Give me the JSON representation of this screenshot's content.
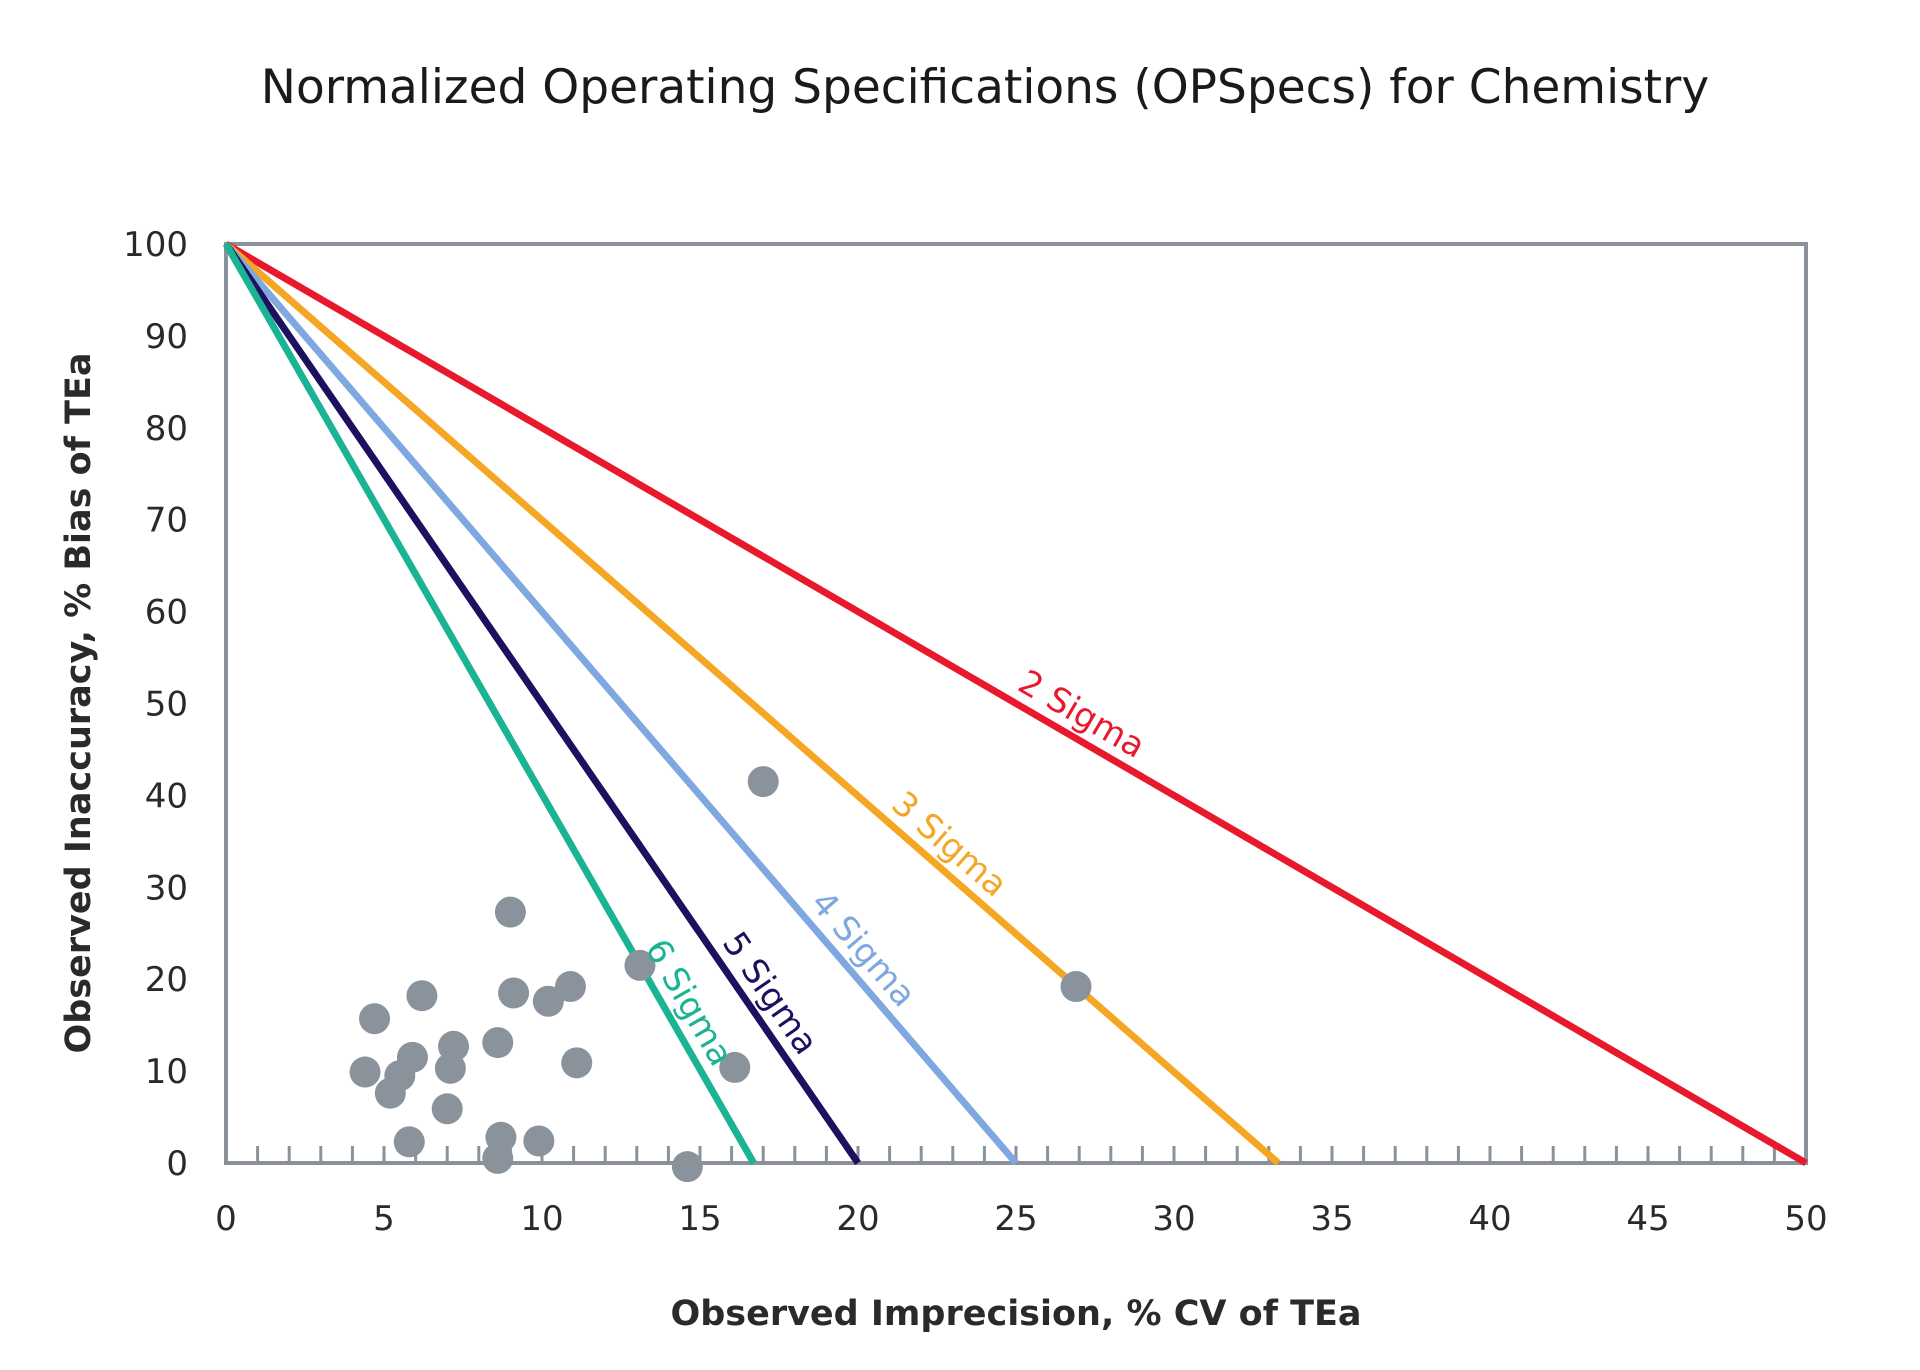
{
  "chart_data": {
    "type": "scatter",
    "title": "Normalized Operating Specifications (OPSpecs) for Chemistry",
    "xlabel": "Observed Imprecision, % CV of TEa",
    "ylabel": "Observed Inaccuracy, % Bias of TEa",
    "xlim": [
      0,
      50
    ],
    "ylim": [
      0,
      100
    ],
    "xticks": [
      0,
      5,
      10,
      15,
      20,
      25,
      30,
      35,
      40,
      45,
      50
    ],
    "yticks": [
      0,
      10,
      20,
      30,
      40,
      50,
      60,
      70,
      80,
      90,
      100
    ],
    "grid": false,
    "axis_color": "#8a919a",
    "point_color": "#8a939c",
    "lines": [
      {
        "name": "2 Sigma",
        "color": "#e8192c",
        "from": [
          0,
          100
        ],
        "to": [
          50,
          0
        ],
        "label_at_x": 26.7
      },
      {
        "name": "3 Sigma",
        "color": "#f5a623",
        "from": [
          0,
          100
        ],
        "to": [
          33.3,
          0
        ],
        "label_at_x": 22.4
      },
      {
        "name": "4 Sigma",
        "color": "#7fa8e0",
        "from": [
          0,
          100
        ],
        "to": [
          25,
          0
        ],
        "label_at_x": 19.6
      },
      {
        "name": "5 Sigma",
        "color": "#1f0f5f",
        "from": [
          0,
          100
        ],
        "to": [
          20,
          0
        ],
        "label_at_x": 16.6
      },
      {
        "name": "6 Sigma",
        "color": "#1ab394",
        "from": [
          0,
          100
        ],
        "to": [
          16.7,
          0
        ],
        "label_at_x": 14.0
      }
    ],
    "points": [
      [
        17.0,
        41.5
      ],
      [
        9.0,
        27.3
      ],
      [
        13.1,
        21.5
      ],
      [
        26.9,
        19.2
      ],
      [
        6.2,
        18.2
      ],
      [
        9.1,
        18.5
      ],
      [
        10.2,
        17.6
      ],
      [
        10.9,
        19.2
      ],
      [
        4.7,
        15.7
      ],
      [
        7.2,
        12.7
      ],
      [
        8.6,
        13.1
      ],
      [
        5.9,
        11.5
      ],
      [
        7.1,
        10.3
      ],
      [
        11.1,
        10.9
      ],
      [
        16.1,
        10.4
      ],
      [
        4.4,
        9.9
      ],
      [
        5.5,
        9.5
      ],
      [
        5.2,
        7.6
      ],
      [
        7.0,
        5.9
      ],
      [
        5.8,
        2.3
      ],
      [
        8.7,
        2.8
      ],
      [
        9.9,
        2.4
      ],
      [
        8.6,
        0.5
      ],
      [
        14.6,
        -0.4
      ]
    ]
  }
}
